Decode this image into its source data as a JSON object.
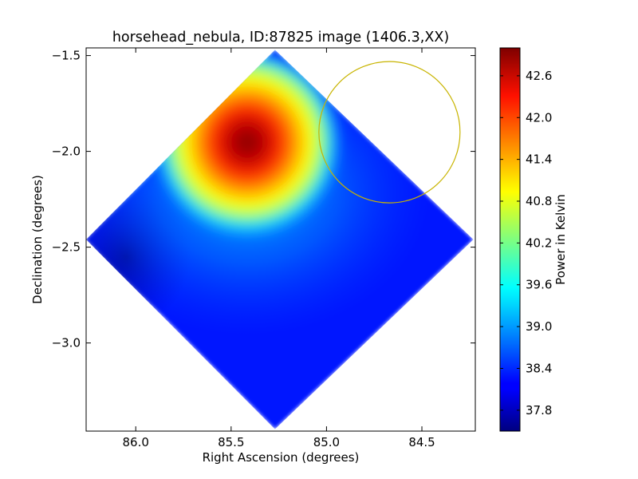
{
  "chart_data": {
    "type": "heatmap",
    "title": "horsehead_nebula, ID:87825 image (1406.3,XX)",
    "xlabel": "Right Ascension (degrees)",
    "ylabel": "Declination (degrees)",
    "colorbar_label": "Power in Kelvin",
    "xlim": [
      86.26,
      84.22
    ],
    "ylim": [
      -3.46,
      -1.46
    ],
    "x_ticks": [
      86.0,
      85.5,
      85.0,
      84.5
    ],
    "x_tick_labels": [
      "86.0",
      "85.5",
      "85.0",
      "84.5"
    ],
    "y_ticks": [
      -1.5,
      -2.0,
      -2.5,
      -3.0
    ],
    "y_tick_labels": [
      "−1.5",
      "−2.0",
      "−2.5",
      "−3.0"
    ],
    "colorbar_range": [
      37.5,
      43.0
    ],
    "colorbar_ticks": [
      37.8,
      38.4,
      39.0,
      39.6,
      40.2,
      40.8,
      41.4,
      42.0,
      42.6
    ],
    "colorbar_tick_labels": [
      "37.8",
      "38.4",
      "39.0",
      "39.6",
      "40.2",
      "40.8",
      "41.4",
      "42.0",
      "42.6"
    ],
    "colormap": "jet",
    "grid": false,
    "map_region": {
      "shape": "diamond",
      "corners": [
        {
          "ra": 85.27,
          "dec": -1.47
        },
        {
          "ra": 84.23,
          "dec": -2.46
        },
        {
          "ra": 85.27,
          "dec": -3.45
        },
        {
          "ra": 86.26,
          "dec": -2.46
        }
      ],
      "background_level": 37.9
    },
    "emission_peak": {
      "ra": 85.5,
      "dec": -1.96,
      "level": 42.9
    },
    "circle_marker": {
      "center_ra": 84.67,
      "center_dec": -1.9,
      "radius_deg": 0.37,
      "color": "#c8b400"
    },
    "colors": {
      "frame": "#000000",
      "marker": "#c8b400"
    }
  }
}
